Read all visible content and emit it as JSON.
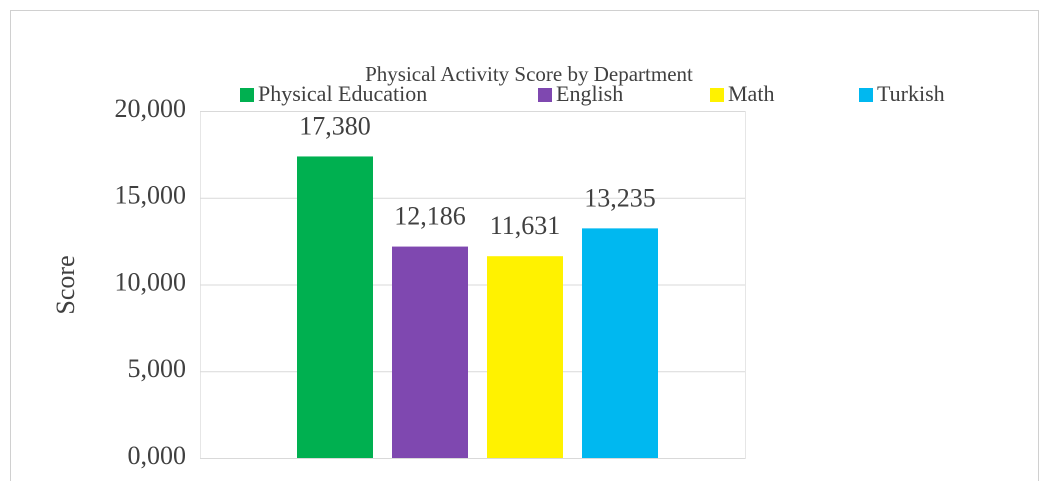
{
  "chart_data": {
    "type": "bar",
    "title": "Physical Activity Score by Department",
    "y_label": "Score",
    "categories": [
      null
    ],
    "series": [
      {
        "name": "Physical Education",
        "color": "#00b050",
        "values": [
          17.38
        ],
        "value_labels": [
          "17,380"
        ]
      },
      {
        "name": "English",
        "color": "#7f48b0",
        "values": [
          12.186
        ],
        "value_labels": [
          "12,186"
        ]
      },
      {
        "name": "Math",
        "color": "#fff200",
        "values": [
          11.631
        ],
        "value_labels": [
          "11,631"
        ]
      },
      {
        "name": "Turkish",
        "color": "#00b8f0",
        "values": [
          13.235
        ],
        "value_labels": [
          "13,235"
        ]
      }
    ],
    "ylim": [
      0,
      20
    ],
    "yticks": [
      {
        "value": 0,
        "label": "0,000"
      },
      {
        "value": 5,
        "label": "5,000"
      },
      {
        "value": 10,
        "label": "10,000"
      },
      {
        "value": 15,
        "label": "15,000"
      },
      {
        "value": 20,
        "label": "20,000"
      }
    ],
    "grid": true,
    "legend": "top"
  }
}
